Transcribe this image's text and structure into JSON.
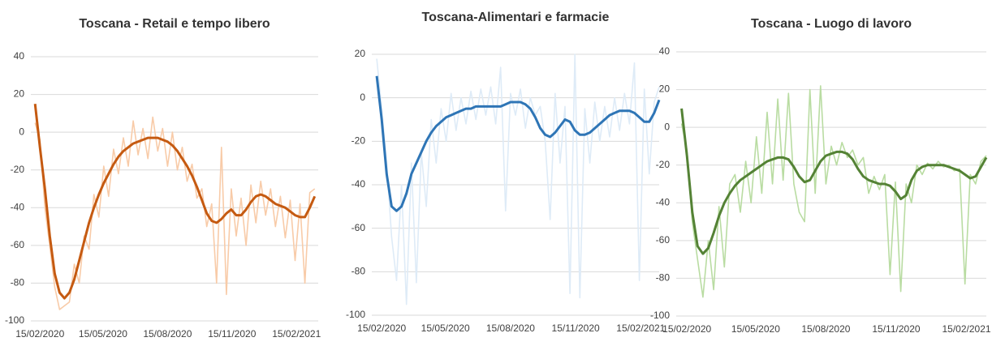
{
  "chart_data": [
    {
      "type": "line",
      "title": "Toscana - Retail e tempo libero",
      "x": [
        "08/02/2020",
        "15/02/2020",
        "22/02/2020",
        "29/02/2020",
        "07/03/2020",
        "14/03/2020",
        "21/03/2020",
        "28/03/2020",
        "04/04/2020",
        "11/04/2020",
        "18/04/2020",
        "25/04/2020",
        "02/05/2020",
        "09/05/2020",
        "16/05/2020",
        "23/05/2020",
        "30/05/2020",
        "06/06/2020",
        "13/06/2020",
        "20/06/2020",
        "27/06/2020",
        "04/07/2020",
        "11/07/2020",
        "18/07/2020",
        "25/07/2020",
        "01/08/2020",
        "08/08/2020",
        "15/08/2020",
        "22/08/2020",
        "29/08/2020",
        "05/09/2020",
        "12/09/2020",
        "19/09/2020",
        "26/09/2020",
        "03/10/2020",
        "10/10/2020",
        "17/10/2020",
        "24/10/2020",
        "31/10/2020",
        "07/11/2020",
        "14/11/2020",
        "21/11/2020",
        "28/11/2020",
        "05/12/2020",
        "12/12/2020",
        "19/12/2020",
        "26/12/2020",
        "02/01/2021",
        "09/01/2021",
        "16/01/2021",
        "23/01/2021",
        "30/01/2021",
        "06/02/2021",
        "13/02/2021",
        "20/02/2021",
        "27/02/2021",
        "06/03/2021",
        "13/03/2021"
      ],
      "series": [
        {
          "color": "#f8cba8",
          "width": 1.6,
          "values": [
            5,
            -4,
            -40,
            -60,
            -82,
            -94,
            -92,
            -90,
            -70,
            -80,
            -55,
            -62,
            -33,
            -45,
            -18,
            -34,
            -9,
            -22,
            -3,
            -18,
            6,
            -12,
            2,
            -14,
            8,
            -10,
            2,
            -18,
            0,
            -20,
            -8,
            -26,
            -17,
            -35,
            -30,
            -50,
            -38,
            -80,
            -8,
            -86,
            -30,
            -55,
            -35,
            -60,
            -28,
            -48,
            -26,
            -44,
            -30,
            -50,
            -34,
            -56,
            -36,
            -68,
            -38,
            -80,
            -32,
            -30
          ]
        },
        {
          "color": "#c55a11",
          "width": 3,
          "values": [
            15,
            -8,
            -30,
            -55,
            -75,
            -85,
            -88,
            -85,
            -78,
            -68,
            -58,
            -48,
            -40,
            -33,
            -27,
            -22,
            -17,
            -13,
            -10,
            -8,
            -6,
            -5,
            -4,
            -3,
            -3,
            -3,
            -4,
            -5,
            -7,
            -10,
            -14,
            -18,
            -23,
            -29,
            -36,
            -43,
            -47,
            -48,
            -46,
            -43,
            -41,
            -44,
            -44,
            -41,
            -37,
            -34,
            -33,
            -34,
            -36,
            -38,
            -39,
            -40,
            -42,
            -44,
            -45,
            -45,
            -40,
            -34
          ]
        }
      ],
      "xlim": [
        "02/02/2020",
        "18/03/2021"
      ],
      "xticks": [
        "15/02/2020",
        "15/05/2020",
        "15/08/2020",
        "15/11/2020",
        "15/02/2021"
      ],
      "ylim": [
        -100,
        40
      ],
      "yticks": [
        -100,
        -80,
        -60,
        -40,
        -20,
        0,
        20,
        40
      ],
      "grid": true
    },
    {
      "type": "line",
      "title": "Toscana-Alimentari e farmacie",
      "x": [
        "08/02/2020",
        "15/02/2020",
        "22/02/2020",
        "29/02/2020",
        "07/03/2020",
        "14/03/2020",
        "21/03/2020",
        "28/03/2020",
        "04/04/2020",
        "11/04/2020",
        "18/04/2020",
        "25/04/2020",
        "02/05/2020",
        "09/05/2020",
        "16/05/2020",
        "23/05/2020",
        "30/05/2020",
        "06/06/2020",
        "13/06/2020",
        "20/06/2020",
        "27/06/2020",
        "04/07/2020",
        "11/07/2020",
        "18/07/2020",
        "25/07/2020",
        "01/08/2020",
        "08/08/2020",
        "15/08/2020",
        "22/08/2020",
        "29/08/2020",
        "05/09/2020",
        "12/09/2020",
        "19/09/2020",
        "26/09/2020",
        "03/10/2020",
        "10/10/2020",
        "17/10/2020",
        "24/10/2020",
        "31/10/2020",
        "07/11/2020",
        "14/11/2020",
        "21/11/2020",
        "28/11/2020",
        "05/12/2020",
        "12/12/2020",
        "19/12/2020",
        "26/12/2020",
        "02/01/2021",
        "09/01/2021",
        "16/01/2021",
        "23/01/2021",
        "30/01/2021",
        "06/02/2021",
        "13/02/2021",
        "20/02/2021",
        "27/02/2021",
        "06/03/2021",
        "13/03/2021"
      ],
      "series": [
        {
          "color": "#deebf7",
          "width": 1.6,
          "values": [
            18,
            -5,
            -30,
            -64,
            -84,
            -40,
            -95,
            -30,
            -85,
            -25,
            -50,
            -10,
            -30,
            -5,
            -20,
            2,
            -15,
            0,
            -12,
            3,
            -10,
            4,
            -8,
            5,
            -12,
            14,
            -52,
            2,
            -8,
            4,
            -14,
            0,
            -8,
            -4,
            -20,
            -56,
            2,
            -30,
            -4,
            -90,
            20,
            -92,
            -5,
            -30,
            -2,
            -20,
            -4,
            -18,
            0,
            -15,
            2,
            -12,
            16,
            -84,
            4,
            -35,
            -2,
            5
          ]
        },
        {
          "color": "#2e75b6",
          "width": 3,
          "values": [
            10,
            -10,
            -35,
            -50,
            -52,
            -50,
            -44,
            -35,
            -30,
            -25,
            -20,
            -16,
            -13,
            -11,
            -9,
            -8,
            -7,
            -6,
            -5,
            -5,
            -4,
            -4,
            -4,
            -4,
            -4,
            -4,
            -3,
            -2,
            -2,
            -2,
            -3,
            -5,
            -9,
            -14,
            -17,
            -18,
            -16,
            -13,
            -10,
            -11,
            -15,
            -17,
            -17,
            -16,
            -14,
            -12,
            -10,
            -8,
            -7,
            -6,
            -6,
            -6,
            -7,
            -9,
            -11,
            -11,
            -7,
            -1
          ]
        }
      ],
      "xlim": [
        "01/02/2020",
        "13/03/2021"
      ],
      "xticks": [
        "15/02/2020",
        "15/05/2020",
        "15/08/2020",
        "15/11/2020",
        "15/02/2021"
      ],
      "ylim": [
        -100,
        20
      ],
      "yticks": [
        -100,
        -80,
        -60,
        -40,
        -20,
        0,
        20
      ],
      "grid": true
    },
    {
      "type": "line",
      "title": "Toscana - Luogo di lavoro",
      "x": [
        "08/02/2020",
        "15/02/2020",
        "22/02/2020",
        "29/02/2020",
        "07/03/2020",
        "14/03/2020",
        "21/03/2020",
        "28/03/2020",
        "04/04/2020",
        "11/04/2020",
        "18/04/2020",
        "25/04/2020",
        "02/05/2020",
        "09/05/2020",
        "16/05/2020",
        "23/05/2020",
        "30/05/2020",
        "06/06/2020",
        "13/06/2020",
        "20/06/2020",
        "27/06/2020",
        "04/07/2020",
        "11/07/2020",
        "18/07/2020",
        "25/07/2020",
        "01/08/2020",
        "08/08/2020",
        "15/08/2020",
        "22/08/2020",
        "29/08/2020",
        "05/09/2020",
        "12/09/2020",
        "19/09/2020",
        "26/09/2020",
        "03/10/2020",
        "10/10/2020",
        "17/10/2020",
        "24/10/2020",
        "31/10/2020",
        "07/11/2020",
        "14/11/2020",
        "21/11/2020",
        "28/11/2020",
        "05/12/2020",
        "12/12/2020",
        "19/12/2020",
        "26/12/2020",
        "02/01/2021",
        "09/01/2021",
        "16/01/2021",
        "23/01/2021",
        "30/01/2021",
        "06/02/2021",
        "13/02/2021",
        "20/02/2021",
        "27/02/2021",
        "06/03/2021",
        "13/03/2021"
      ],
      "series": [
        {
          "color": "#b9dca2",
          "width": 1.6,
          "values": [
            2,
            -12,
            -50,
            -70,
            -90,
            -60,
            -86,
            -42,
            -74,
            -30,
            -25,
            -45,
            -18,
            -40,
            -5,
            -35,
            8,
            -30,
            15,
            -28,
            18,
            -30,
            -45,
            -50,
            20,
            -35,
            22,
            -30,
            -10,
            -20,
            -8,
            -16,
            -12,
            -20,
            -16,
            -35,
            -26,
            -33,
            -25,
            -78,
            -29,
            -87,
            -30,
            -40,
            -20,
            -25,
            -19,
            -22,
            -18,
            -21,
            -20,
            -23,
            -22,
            -83,
            -25,
            -30,
            -18,
            -15
          ]
        },
        {
          "color": "#548235",
          "width": 3,
          "values": [
            10,
            -15,
            -45,
            -63,
            -67,
            -64,
            -56,
            -47,
            -40,
            -35,
            -31,
            -28,
            -26,
            -24,
            -22,
            -20,
            -18,
            -17,
            -16,
            -16,
            -17,
            -21,
            -26,
            -29,
            -28,
            -23,
            -18,
            -15,
            -14,
            -13,
            -13,
            -14,
            -17,
            -22,
            -26,
            -28,
            -29,
            -30,
            -30,
            -31,
            -34,
            -38,
            -36,
            -28,
            -23,
            -21,
            -20,
            -20,
            -20,
            -20,
            -21,
            -22,
            -23,
            -25,
            -27,
            -26,
            -21,
            -16
          ]
        }
      ],
      "xlim": [
        "01/02/2020",
        "13/03/2021"
      ],
      "xticks": [
        "15/02/2020",
        "15/05/2020",
        "15/08/2020",
        "15/11/2020",
        "15/02/2021"
      ],
      "ylim": [
        -100,
        40
      ],
      "yticks": [
        -100,
        -80,
        -60,
        -40,
        -20,
        0,
        20,
        40
      ],
      "grid": true
    }
  ]
}
